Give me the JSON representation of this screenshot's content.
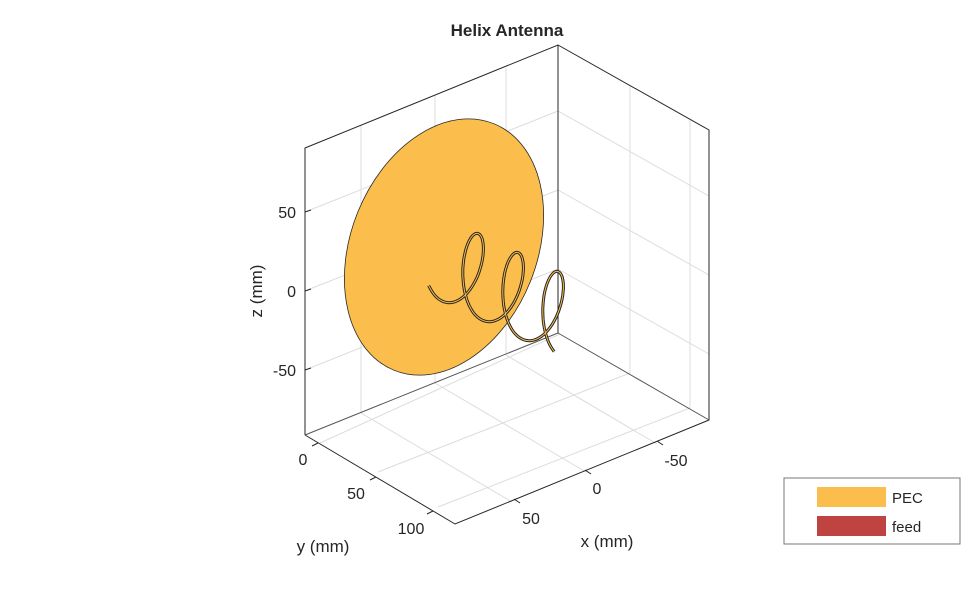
{
  "chart_data": {
    "type": "3d-surface",
    "title": "Helix Antenna",
    "xlabel": "x (mm)",
    "ylabel": "y (mm)",
    "zlabel": "z (mm)",
    "x_ticks": [
      "-50",
      "0",
      "50"
    ],
    "y_ticks": [
      "0",
      "50",
      "100"
    ],
    "z_ticks": [
      "50",
      "0",
      "-50"
    ],
    "grid": true,
    "legend_position": "bottom-right",
    "legend": [
      {
        "label": "PEC",
        "color": "#FBBE4D"
      },
      {
        "label": "feed",
        "color": "#BF4340"
      }
    ],
    "colors": {
      "pec": "#FBBE4D",
      "feed": "#BF4340",
      "axes": "#262626",
      "grid": "#DCDCDC"
    }
  }
}
